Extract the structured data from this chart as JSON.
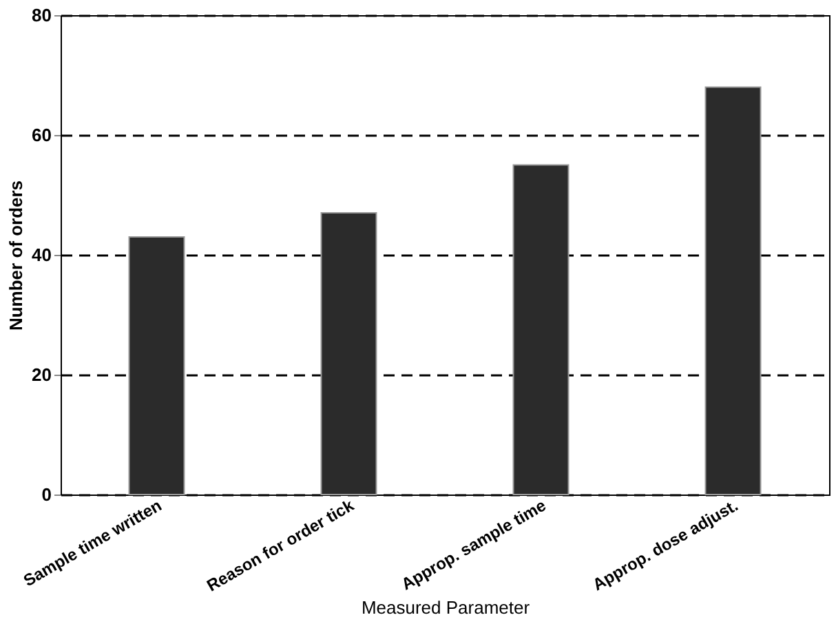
{
  "chart_data": {
    "type": "bar",
    "xlabel": "Measured Parameter",
    "ylabel": "Number of orders",
    "categories": [
      "Sample time written",
      "Reason for order tick",
      "Approp. sample time",
      "Approp. dose adjust."
    ],
    "values": [
      43,
      47,
      55,
      68
    ],
    "color": "#2b2b2b",
    "ylim": [
      0,
      80
    ],
    "yticks": [
      0,
      20,
      40,
      60,
      80
    ],
    "grid": "y"
  }
}
